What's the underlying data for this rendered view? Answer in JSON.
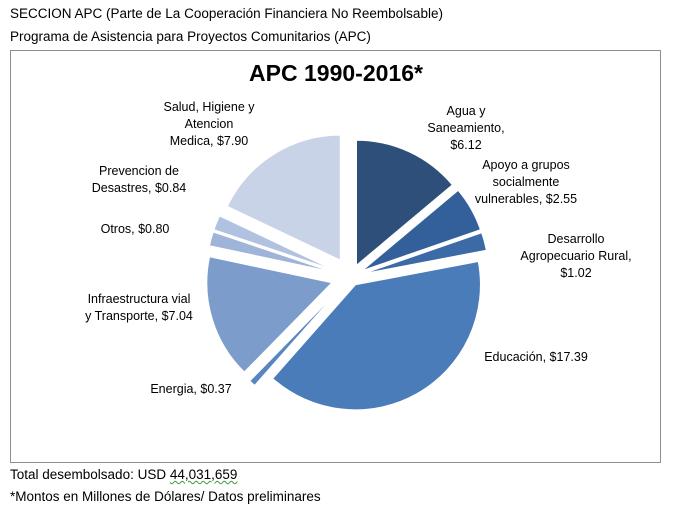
{
  "header": {
    "line1": "SECCION APC (Parte de La Cooperación Financiera No Reembolsable)",
    "line2": "Programa de Asistencia para Proyectos Comunitarios (APC)"
  },
  "footer": {
    "total_label": "Total desembolsado:   USD ",
    "total_value": "44,031,659",
    "note": "*Montos en Millones de Dólares/ Datos preliminares"
  },
  "chart_data": {
    "type": "pie",
    "title": "APC 1990-2016*",
    "exploded": true,
    "slices": [
      {
        "name": "Agua y Saneamiento",
        "value": 6.12,
        "label_lines": [
          "Agua y",
          "Saneamiento,",
          "$6.12"
        ],
        "color": "#2e4f7a"
      },
      {
        "name": "Apoyo a grupos socialmente vulnerables",
        "value": 2.55,
        "label_lines": [
          "Apoyo a grupos",
          "socialmente",
          "vulnerables,  $2.55"
        ],
        "color": "#33609a"
      },
      {
        "name": "Desarrollo Agropecuario Rural",
        "value": 1.02,
        "label_lines": [
          "Desarrollo",
          "Agropecuario Rural,",
          "$1.02"
        ],
        "color": "#3b6aa6"
      },
      {
        "name": "Educación",
        "value": 17.39,
        "label_lines": [
          "Educación,  $17.39"
        ],
        "color": "#4a7cba"
      },
      {
        "name": "Energia",
        "value": 0.37,
        "label_lines": [
          "Energia,  $0.37"
        ],
        "color": "#5886c0"
      },
      {
        "name": "Infraestructura vial y Transporte",
        "value": 7.04,
        "label_lines": [
          "Infraestructura vial",
          "y Transporte,  $7.04"
        ],
        "color": "#7c9ccc"
      },
      {
        "name": "Otros",
        "value": 0.8,
        "label_lines": [
          "Otros,  $0.80"
        ],
        "color": "#9fb4d9"
      },
      {
        "name": "Prevencion de Desastres",
        "value": 0.84,
        "label_lines": [
          "Prevencion de",
          "Desastres,  $0.84"
        ],
        "color": "#b1c2e0"
      },
      {
        "name": "Salud, Higiene y Atencion Medica",
        "value": 7.9,
        "label_lines": [
          "Salud, Higiene y",
          "Atencion",
          "Medica,  $7.90"
        ],
        "color": "#c8d3e8"
      }
    ]
  }
}
